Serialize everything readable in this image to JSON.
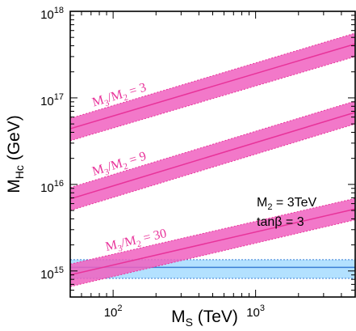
{
  "chart_data": {
    "type": "line",
    "x_scale": "log",
    "y_scale": "log",
    "xlim": [
      50,
      5000
    ],
    "ylim": [
      500000000000000.0,
      1e+18
    ],
    "xlabel": {
      "main": "M",
      "sub": "S",
      "rest": " (TeV)"
    },
    "ylabel": {
      "main": "M",
      "sub": "Hc",
      "rest": " (GeV)"
    },
    "x_ticks": [
      {
        "value": 100,
        "base": "10",
        "exp": "2"
      },
      {
        "value": 1000,
        "base": "10",
        "exp": "3"
      }
    ],
    "y_ticks": [
      {
        "value": 1000000000000000.0,
        "base": "10",
        "exp": "15"
      },
      {
        "value": 1e+16,
        "base": "10",
        "exp": "16"
      },
      {
        "value": 1e+17,
        "base": "10",
        "exp": "17"
      },
      {
        "value": 1e+18,
        "base": "10",
        "exp": "18"
      }
    ],
    "series": [
      {
        "label": {
          "main": "M",
          "sub1": "3",
          "mid": "/M",
          "sub2": "2",
          "rest": " = 3"
        },
        "color": "#e8339a",
        "band_color": "#f060c0",
        "x": [
          50,
          5000
        ],
        "y": [
          4.4e+16,
          4.2e+17
        ],
        "y_low": [
          3.2e+16,
          3e+17
        ],
        "y_high": [
          5.8e+16,
          5.6e+17
        ]
      },
      {
        "label": {
          "main": "M",
          "sub1": "3",
          "mid": "/M",
          "sub2": "2",
          "rest": " = 9"
        },
        "color": "#e8339a",
        "band_color": "#f060c0",
        "x": [
          50,
          5000
        ],
        "y": [
          6800000000000000.0,
          6.8e+16
        ],
        "y_low": [
          5000000000000000.0,
          5e+16
        ],
        "y_high": [
          9200000000000000.0,
          9.2e+16
        ]
      },
      {
        "label": {
          "main": "M",
          "sub1": "3",
          "mid": "/M",
          "sub2": "2",
          "rest": " = 30"
        },
        "color": "#e8339a",
        "band_color": "#f060c0",
        "x": [
          50,
          5000
        ],
        "y": [
          900000000000000.0,
          5200000000000000.0
        ],
        "y_low": [
          660000000000000.0,
          3900000000000000.0
        ],
        "y_high": [
          1200000000000000.0,
          6900000000000000.0
        ]
      }
    ],
    "horizontal_band": {
      "y": 1100000000000000.0,
      "y_low": 820000000000000.0,
      "y_high": 1350000000000000.0,
      "color": "#3a7fd5",
      "band_color": "#a6dcff"
    },
    "annotations": [
      {
        "main": "M",
        "sub": "2",
        "rest": " = 3TeV"
      },
      {
        "main": "tan",
        "greek": "β",
        "rest": " = 3"
      }
    ],
    "grid": false
  }
}
